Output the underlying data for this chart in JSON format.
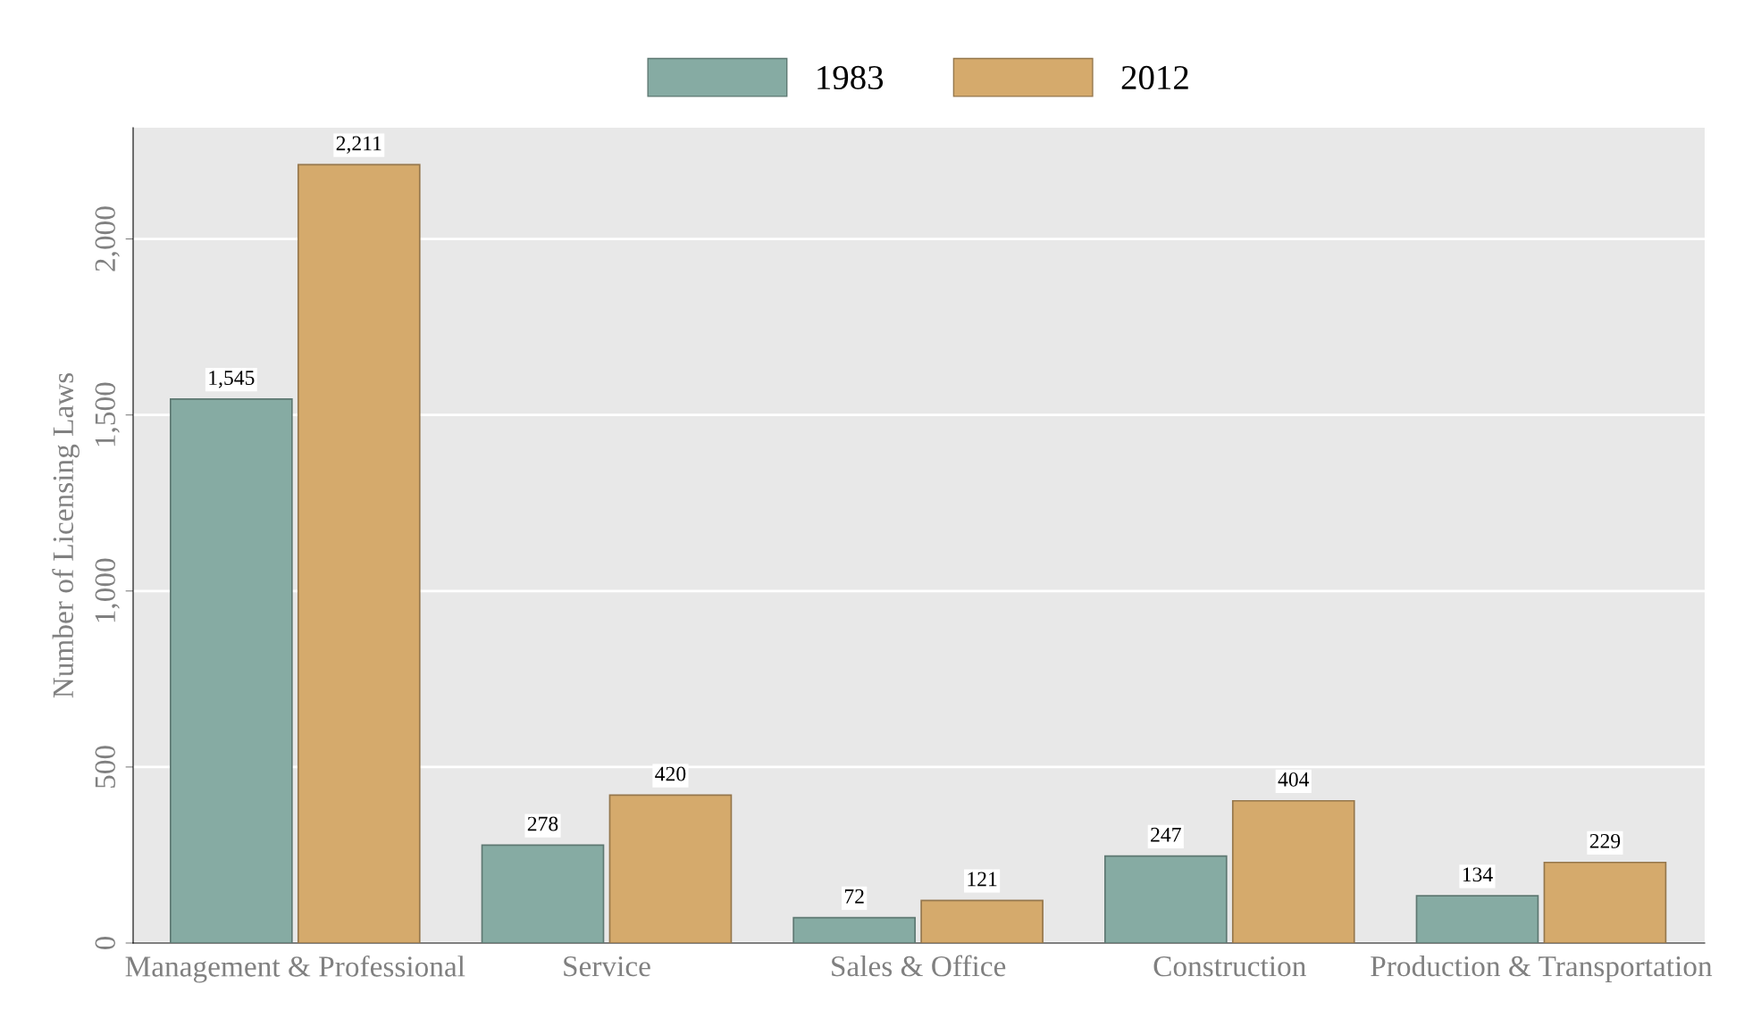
{
  "chart_data": {
    "type": "bar",
    "ylabel": "Number of Licensing Laws",
    "categories": [
      "Management & Professional",
      "Service",
      "Sales & Office",
      "Construction",
      "Production & Transportation"
    ],
    "series": [
      {
        "name": "1983",
        "color": "#86aba3",
        "values": [
          1545,
          278,
          72,
          247,
          134
        ],
        "value_labels": [
          "1,545",
          "278",
          "72",
          "247",
          "134"
        ]
      },
      {
        "name": "2012",
        "color": "#d5aa6c",
        "values": [
          2211,
          420,
          121,
          404,
          229
        ],
        "value_labels": [
          "2,211",
          "420",
          "121",
          "404",
          "229"
        ]
      }
    ],
    "ylim": [
      0,
      2316
    ],
    "yticks": [
      0,
      500,
      {
        "value": 1000,
        "label": "1,000"
      },
      {
        "value": 1500,
        "label": "1,500"
      },
      {
        "value": 2000,
        "label": "2,000"
      }
    ],
    "grid": "y",
    "legend": "top"
  }
}
